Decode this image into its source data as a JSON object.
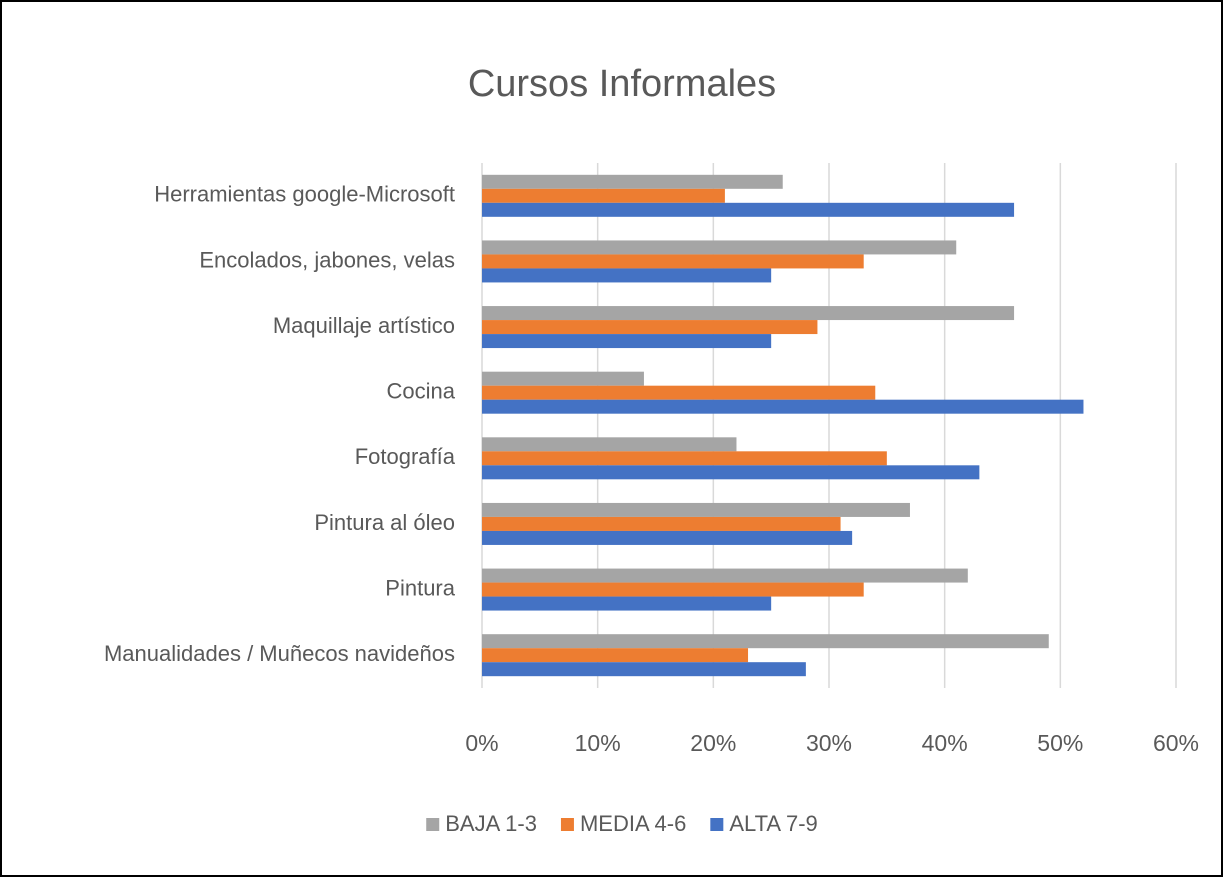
{
  "chart_data": {
    "type": "bar",
    "orientation": "horizontal",
    "title": "Cursos Informales",
    "categories": [
      "Herramientas google-Microsoft",
      "Encolados, jabones, velas",
      "Maquillaje artístico",
      "Cocina",
      "Fotografía",
      "Pintura al óleo",
      "Pintura",
      "Manualidades / Muñecos navideños"
    ],
    "series": [
      {
        "name": "BAJA 1-3",
        "color": "#a5a5a5",
        "values": [
          26,
          41,
          46,
          14,
          22,
          37,
          42,
          49
        ]
      },
      {
        "name": "MEDIA 4-6",
        "color": "#ed7d31",
        "values": [
          21,
          33,
          29,
          34,
          35,
          31,
          33,
          23
        ]
      },
      {
        "name": "ALTA 7-9",
        "color": "#4472c4",
        "values": [
          46,
          25,
          25,
          52,
          43,
          32,
          25,
          28
        ]
      }
    ],
    "xlim": [
      0,
      60
    ],
    "xticks": [
      {
        "value": 0,
        "label": "0%"
      },
      {
        "value": 10,
        "label": "10%"
      },
      {
        "value": 20,
        "label": "20%"
      },
      {
        "value": 30,
        "label": "30%"
      },
      {
        "value": 40,
        "label": "40%"
      },
      {
        "value": 50,
        "label": "50%"
      },
      {
        "value": 60,
        "label": "60%"
      }
    ],
    "grid": true,
    "legend": "bottom"
  }
}
